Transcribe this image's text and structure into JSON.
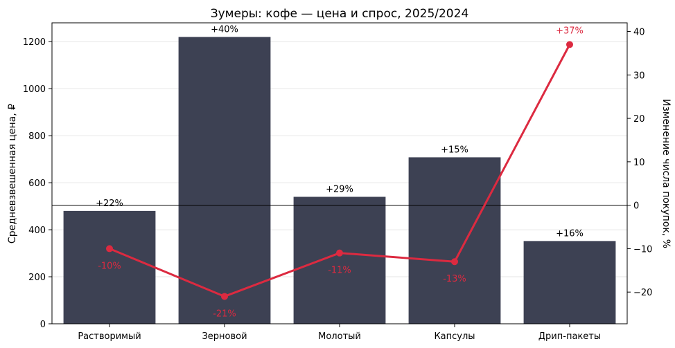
{
  "chart_data": {
    "type": "bar",
    "title": "Зумеры: кофе — цена и спрос, 2025/2024",
    "categories": [
      "Растворимый",
      "Зерновой",
      "Молотый",
      "Капсулы",
      "Дрип-пакеты"
    ],
    "ylabel": "Средневзвешенная цена, ₽",
    "y2label": "Изменение числа покупок, %",
    "ylim": [
      0,
      1280
    ],
    "y2lim": [
      -27.3,
      42
    ],
    "yticks": [
      0,
      200,
      400,
      600,
      800,
      1000,
      1200
    ],
    "y2ticks": [
      -20,
      -10,
      0,
      10,
      20,
      30,
      40
    ],
    "y2tick_labels": [
      "−20",
      "−10",
      "0",
      "10",
      "20",
      "30",
      "40"
    ],
    "grid": true,
    "series": [
      {
        "kind": "bar",
        "values": [
          480,
          1220,
          540,
          708,
          352
        ],
        "labels": [
          "+22%",
          "+40%",
          "+29%",
          "+15%",
          "+16%"
        ],
        "color": "#3d4153"
      },
      {
        "kind": "line",
        "axis": "right",
        "values": [
          -10,
          -21,
          -11,
          -13,
          37
        ],
        "labels": [
          "-10%",
          "-21%",
          "-11%",
          "-13%",
          "+37%"
        ],
        "color": "#dc2a40"
      }
    ]
  }
}
